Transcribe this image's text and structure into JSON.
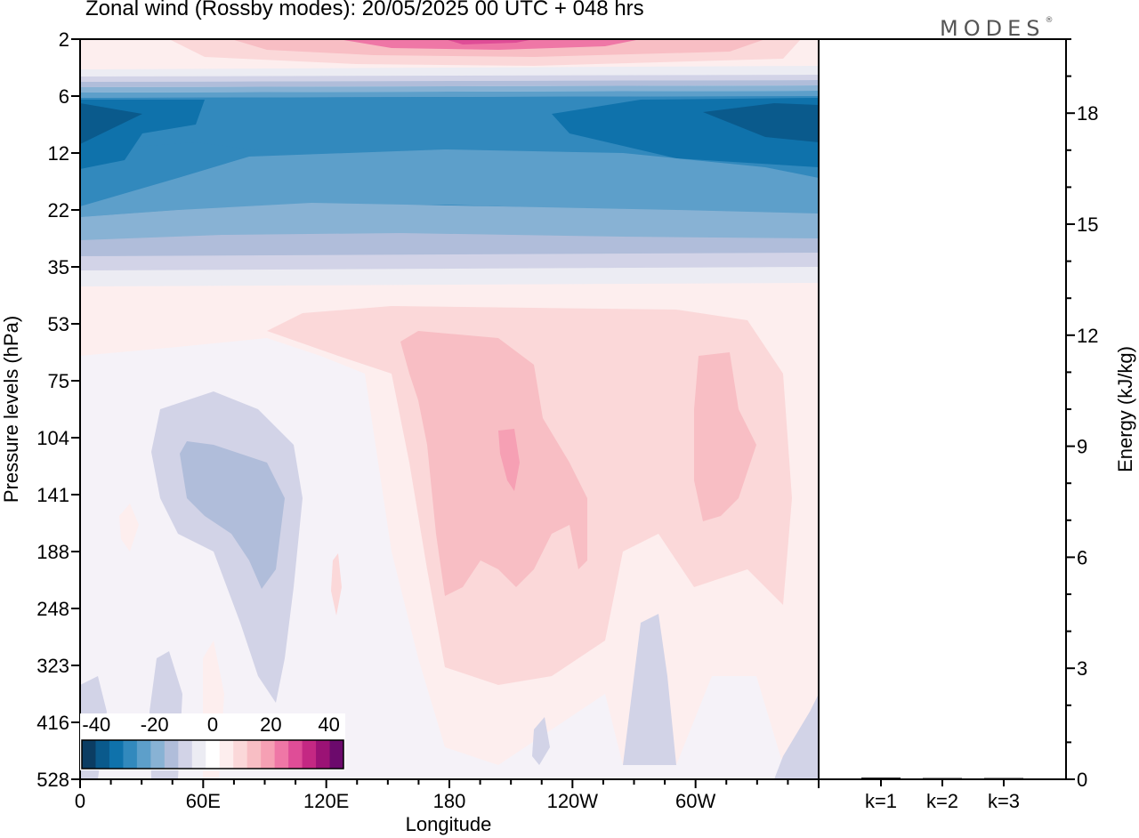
{
  "title": "Zonal wind (Rossby modes):  20/05/2025  00 UTC  + 048 hrs",
  "logo": {
    "text": "MODES",
    "mark": "®"
  },
  "chart_data": [
    {
      "type": "heatmap",
      "title": "Zonal wind (Rossby modes):  20/05/2025  00 UTC  + 048 hrs",
      "xlabel": "Longitude",
      "ylabel": "Pressure levels (hPa)",
      "x_ticks": [
        "0",
        "60E",
        "120E",
        "180",
        "120W",
        "60W"
      ],
      "x_tick_degrees": [
        0,
        60,
        120,
        180,
        240,
        300
      ],
      "xlim": [
        0,
        360
      ],
      "y_ticks": [
        "2",
        "6",
        "12",
        "22",
        "35",
        "53",
        "75",
        "104",
        "141",
        "188",
        "248",
        "323",
        "416",
        "528"
      ],
      "y_scale": "log",
      "colorbar": {
        "ticks": [
          "-40",
          "-20",
          "0",
          "20",
          "40"
        ],
        "range": [
          -45,
          45
        ],
        "step": 5,
        "colors": [
          "#0b3d63",
          "#0a5a8c",
          "#0f72ab",
          "#3289bd",
          "#5d9fca",
          "#88b2d4",
          "#b0bdda",
          "#d2d3e7",
          "#ececf3",
          "#ffffff",
          "#fdeeee",
          "#fbd8d9",
          "#f8bec4",
          "#f6a0b4",
          "#ef77a6",
          "#df4d97",
          "#c42883",
          "#9b1275",
          "#6c0a6c"
        ]
      },
      "approx_fields": [
        {
          "region": "upper stratosphere near 2-4 hPa",
          "value_range": [
            10,
            25
          ]
        },
        {
          "region": "easterly core near 8-10 hPa",
          "value_range": [
            -45,
            -30
          ]
        },
        {
          "region": "easterly band 12-22 hPa",
          "value_range": [
            -30,
            -15
          ]
        },
        {
          "region": "tropospheric westerly maximum near 180 at ~104 hPa",
          "value_range": [
            15,
            20
          ]
        },
        {
          "region": "easterly pocket near 60E-90E at ~104-188 hPa",
          "value_range": [
            -10,
            -5
          ]
        }
      ]
    },
    {
      "type": "bar",
      "ylabel": "Energy (kJ/kg)",
      "categories": [
        "k=1",
        "k=2",
        "k=3"
      ],
      "values": [
        0.02,
        0.01,
        0.01
      ],
      "ylim": [
        0,
        20
      ],
      "y_ticks": [
        "0",
        "3",
        "6",
        "9",
        "12",
        "15",
        "18"
      ],
      "y_tick_values": [
        0,
        3,
        6,
        9,
        12,
        15,
        18
      ]
    }
  ]
}
